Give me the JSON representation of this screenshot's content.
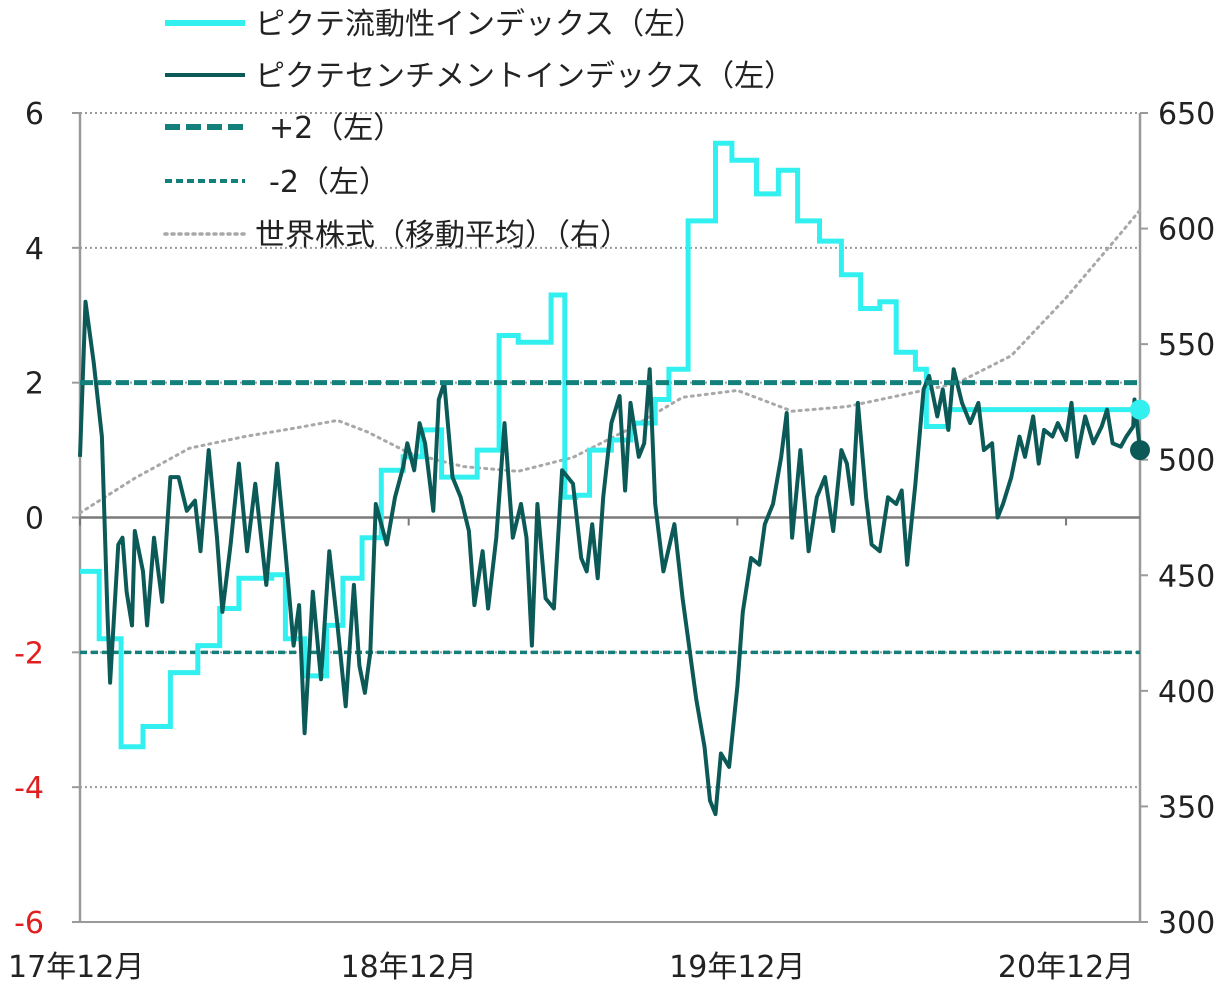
{
  "chart_data": {
    "type": "line",
    "x_labels": [
      "17年12月",
      "18年12月",
      "19年12月",
      "20年12月"
    ],
    "y_left": {
      "min": -6,
      "max": 6,
      "ticks": [
        "-6",
        "-4",
        "-2",
        "0",
        "2",
        "4",
        "6"
      ]
    },
    "y_right": {
      "min": 300,
      "max": 650,
      "ticks": [
        "300",
        "350",
        "400",
        "450",
        "500",
        "550",
        "600",
        "650"
      ]
    },
    "colors": {
      "liquidity": "#33f0f0",
      "sentiment": "#0b5a57",
      "band": "#13807b",
      "world": "#a8a8a8",
      "negative_tick": "#e02020"
    },
    "legend": [
      {
        "key": "liquidity",
        "label": "ピクテ流動性インデックス（左）"
      },
      {
        "key": "sentiment",
        "label": "ピクテセンチメントインデックス（左）"
      },
      {
        "key": "plus2",
        "label": "+2（左）"
      },
      {
        "key": "minus2",
        "label": "-2（左）"
      },
      {
        "key": "world",
        "label": "世界株式（移動平均）（右）"
      }
    ],
    "series": [
      {
        "name": "ピクテ流動性インデックス（左）",
        "axis": "left",
        "style": "step",
        "points": [
          [
            0.0,
            -0.8
          ],
          [
            0.7,
            -1.8
          ],
          [
            1.5,
            -3.4
          ],
          [
            2.3,
            -3.1
          ],
          [
            3.3,
            -2.3
          ],
          [
            4.3,
            -1.9
          ],
          [
            5.1,
            -1.35
          ],
          [
            5.8,
            -0.9
          ],
          [
            7.0,
            -0.85
          ],
          [
            7.5,
            -1.8
          ],
          [
            8.2,
            -2.35
          ],
          [
            9.0,
            -1.6
          ],
          [
            9.6,
            -0.9
          ],
          [
            10.3,
            -0.3
          ],
          [
            11.0,
            0.7
          ],
          [
            11.8,
            0.9
          ],
          [
            12.5,
            1.3
          ],
          [
            13.2,
            0.6
          ],
          [
            14.5,
            1.0
          ],
          [
            15.3,
            2.7
          ],
          [
            16.0,
            2.6
          ],
          [
            17.2,
            3.3
          ],
          [
            17.7,
            0.3
          ],
          [
            18.1,
            0.33
          ],
          [
            18.6,
            1.0
          ],
          [
            19.4,
            1.15
          ],
          [
            20.1,
            1.4
          ],
          [
            21.0,
            1.75
          ],
          [
            21.5,
            2.2
          ],
          [
            22.2,
            4.4
          ],
          [
            23.2,
            5.55
          ],
          [
            23.8,
            5.3
          ],
          [
            24.7,
            4.8
          ],
          [
            25.5,
            5.15
          ],
          [
            26.2,
            4.4
          ],
          [
            27.0,
            4.1
          ],
          [
            27.8,
            3.6
          ],
          [
            28.5,
            3.1
          ],
          [
            29.2,
            3.2
          ],
          [
            29.8,
            2.45
          ],
          [
            30.5,
            2.2
          ],
          [
            30.9,
            1.35
          ],
          [
            31.7,
            1.6
          ]
        ]
      },
      {
        "name": "ピクテセンチメントインデックス（左）",
        "axis": "left",
        "style": "line",
        "points": [
          [
            0.0,
            0.9
          ],
          [
            0.2,
            3.2
          ],
          [
            0.5,
            2.3
          ],
          [
            0.8,
            1.2
          ],
          [
            1.0,
            -1.4
          ],
          [
            1.1,
            -2.45
          ],
          [
            1.4,
            -0.4
          ],
          [
            1.55,
            -0.3
          ],
          [
            1.7,
            -1.1
          ],
          [
            1.9,
            -1.6
          ],
          [
            2.0,
            -0.2
          ],
          [
            2.3,
            -0.8
          ],
          [
            2.45,
            -1.6
          ],
          [
            2.7,
            -0.3
          ],
          [
            3.0,
            -1.25
          ],
          [
            3.3,
            0.6
          ],
          [
            3.6,
            0.6
          ],
          [
            3.9,
            0.1
          ],
          [
            4.2,
            0.25
          ],
          [
            4.4,
            -0.5
          ],
          [
            4.7,
            1.0
          ],
          [
            5.0,
            -0.3
          ],
          [
            5.2,
            -1.4
          ],
          [
            5.5,
            -0.4
          ],
          [
            5.8,
            0.8
          ],
          [
            6.1,
            -0.5
          ],
          [
            6.4,
            0.5
          ],
          [
            6.8,
            -1.0
          ],
          [
            7.2,
            0.8
          ],
          [
            7.5,
            -0.5
          ],
          [
            7.8,
            -1.9
          ],
          [
            8.0,
            -1.3
          ],
          [
            8.2,
            -3.2
          ],
          [
            8.5,
            -1.1
          ],
          [
            8.8,
            -2.4
          ],
          [
            9.1,
            -0.5
          ],
          [
            9.4,
            -1.6
          ],
          [
            9.7,
            -2.8
          ],
          [
            10.0,
            -1.0
          ],
          [
            10.2,
            -2.2
          ],
          [
            10.4,
            -2.6
          ],
          [
            10.6,
            -2.0
          ],
          [
            10.8,
            0.2
          ],
          [
            11.2,
            -0.4
          ],
          [
            11.5,
            0.3
          ],
          [
            11.8,
            0.75
          ],
          [
            11.95,
            1.1
          ],
          [
            12.2,
            0.7
          ],
          [
            12.4,
            1.4
          ],
          [
            12.6,
            1.1
          ],
          [
            12.9,
            0.1
          ],
          [
            13.1,
            1.75
          ],
          [
            13.3,
            2.0
          ],
          [
            13.6,
            0.6
          ],
          [
            13.9,
            0.3
          ],
          [
            14.2,
            -0.2
          ],
          [
            14.4,
            -1.3
          ],
          [
            14.7,
            -0.5
          ],
          [
            14.9,
            -1.35
          ],
          [
            15.2,
            -0.3
          ],
          [
            15.5,
            1.4
          ],
          [
            15.8,
            -0.3
          ],
          [
            16.1,
            0.2
          ],
          [
            16.3,
            -0.3
          ],
          [
            16.5,
            -1.9
          ],
          [
            16.7,
            0.2
          ],
          [
            17.0,
            -1.2
          ],
          [
            17.3,
            -1.35
          ],
          [
            17.6,
            0.7
          ],
          [
            18.0,
            0.5
          ],
          [
            18.3,
            -0.6
          ],
          [
            18.5,
            -0.8
          ],
          [
            18.7,
            -0.1
          ],
          [
            18.9,
            -0.9
          ],
          [
            19.1,
            0.3
          ],
          [
            19.4,
            1.4
          ],
          [
            19.7,
            1.8
          ],
          [
            19.9,
            0.4
          ],
          [
            20.1,
            1.7
          ],
          [
            20.4,
            0.9
          ],
          [
            20.6,
            1.1
          ],
          [
            20.8,
            2.2
          ],
          [
            21.0,
            0.2
          ],
          [
            21.3,
            -0.8
          ],
          [
            21.7,
            -0.1
          ],
          [
            22.0,
            -1.2
          ],
          [
            22.2,
            -1.8
          ],
          [
            22.5,
            -2.7
          ],
          [
            22.8,
            -3.4
          ],
          [
            23.0,
            -4.2
          ],
          [
            23.2,
            -4.4
          ],
          [
            23.4,
            -3.5
          ],
          [
            23.7,
            -3.7
          ],
          [
            24.0,
            -2.5
          ],
          [
            24.2,
            -1.4
          ],
          [
            24.5,
            -0.6
          ],
          [
            24.8,
            -0.7
          ],
          [
            25.0,
            -0.1
          ],
          [
            25.3,
            0.2
          ],
          [
            25.6,
            0.9
          ],
          [
            25.8,
            1.55
          ],
          [
            26.0,
            -0.3
          ],
          [
            26.3,
            1.0
          ],
          [
            26.6,
            -0.5
          ],
          [
            26.9,
            0.3
          ],
          [
            27.2,
            0.6
          ],
          [
            27.5,
            -0.2
          ],
          [
            27.8,
            1.0
          ],
          [
            28.0,
            0.8
          ],
          [
            28.2,
            0.2
          ],
          [
            28.4,
            1.7
          ],
          [
            28.7,
            0.3
          ],
          [
            28.9,
            -0.4
          ],
          [
            29.2,
            -0.5
          ],
          [
            29.5,
            0.3
          ],
          [
            29.8,
            0.2
          ],
          [
            30.0,
            0.4
          ],
          [
            30.2,
            -0.7
          ],
          [
            30.5,
            0.5
          ],
          [
            30.8,
            1.9
          ],
          [
            31.0,
            2.1
          ],
          [
            31.3,
            1.5
          ],
          [
            31.5,
            1.9
          ],
          [
            31.7,
            1.3
          ],
          [
            31.9,
            2.2
          ],
          [
            32.2,
            1.7
          ],
          [
            32.5,
            1.4
          ],
          [
            32.8,
            1.7
          ],
          [
            33.0,
            1.0
          ],
          [
            33.3,
            1.1
          ],
          [
            33.5,
            0.0
          ],
          [
            33.7,
            0.2
          ],
          [
            34.0,
            0.6
          ],
          [
            34.3,
            1.2
          ],
          [
            34.5,
            0.9
          ],
          [
            34.8,
            1.5
          ],
          [
            35.0,
            0.8
          ],
          [
            35.2,
            1.3
          ],
          [
            35.5,
            1.2
          ],
          [
            35.7,
            1.4
          ],
          [
            36.0,
            1.15
          ],
          [
            36.2,
            1.7
          ],
          [
            36.4,
            0.9
          ],
          [
            36.7,
            1.5
          ],
          [
            37.0,
            1.1
          ],
          [
            37.3,
            1.35
          ],
          [
            37.5,
            1.6
          ],
          [
            37.7,
            1.1
          ],
          [
            38.0,
            1.05
          ],
          [
            38.2,
            1.2
          ],
          [
            38.45,
            1.35
          ],
          [
            38.5,
            1.75
          ],
          [
            38.7,
            1.0
          ]
        ]
      },
      {
        "name": "+2（左）",
        "axis": "left",
        "style": "dash",
        "value": 2
      },
      {
        "name": "-2（左）",
        "axis": "left",
        "style": "dash-fine",
        "value": -2
      },
      {
        "name": "世界株式（移動平均）（右）",
        "axis": "right",
        "style": "dotted",
        "points": [
          [
            0,
            477
          ],
          [
            2,
            492
          ],
          [
            4,
            505
          ],
          [
            6,
            510
          ],
          [
            8,
            514
          ],
          [
            9.4,
            517
          ],
          [
            10.5,
            512
          ],
          [
            12,
            503
          ],
          [
            14,
            497
          ],
          [
            16,
            495
          ],
          [
            18,
            501
          ],
          [
            20,
            513
          ],
          [
            22,
            527
          ],
          [
            24,
            530
          ],
          [
            26,
            521
          ],
          [
            28,
            523
          ],
          [
            30,
            528
          ],
          [
            32,
            533
          ],
          [
            34,
            545
          ],
          [
            36,
            570
          ],
          [
            38,
            598
          ],
          [
            38.7,
            608
          ]
        ]
      }
    ],
    "endpoints": {
      "liquidity": 1.6,
      "sentiment": 1.0
    },
    "grid": true,
    "legend_position": "top-left"
  }
}
